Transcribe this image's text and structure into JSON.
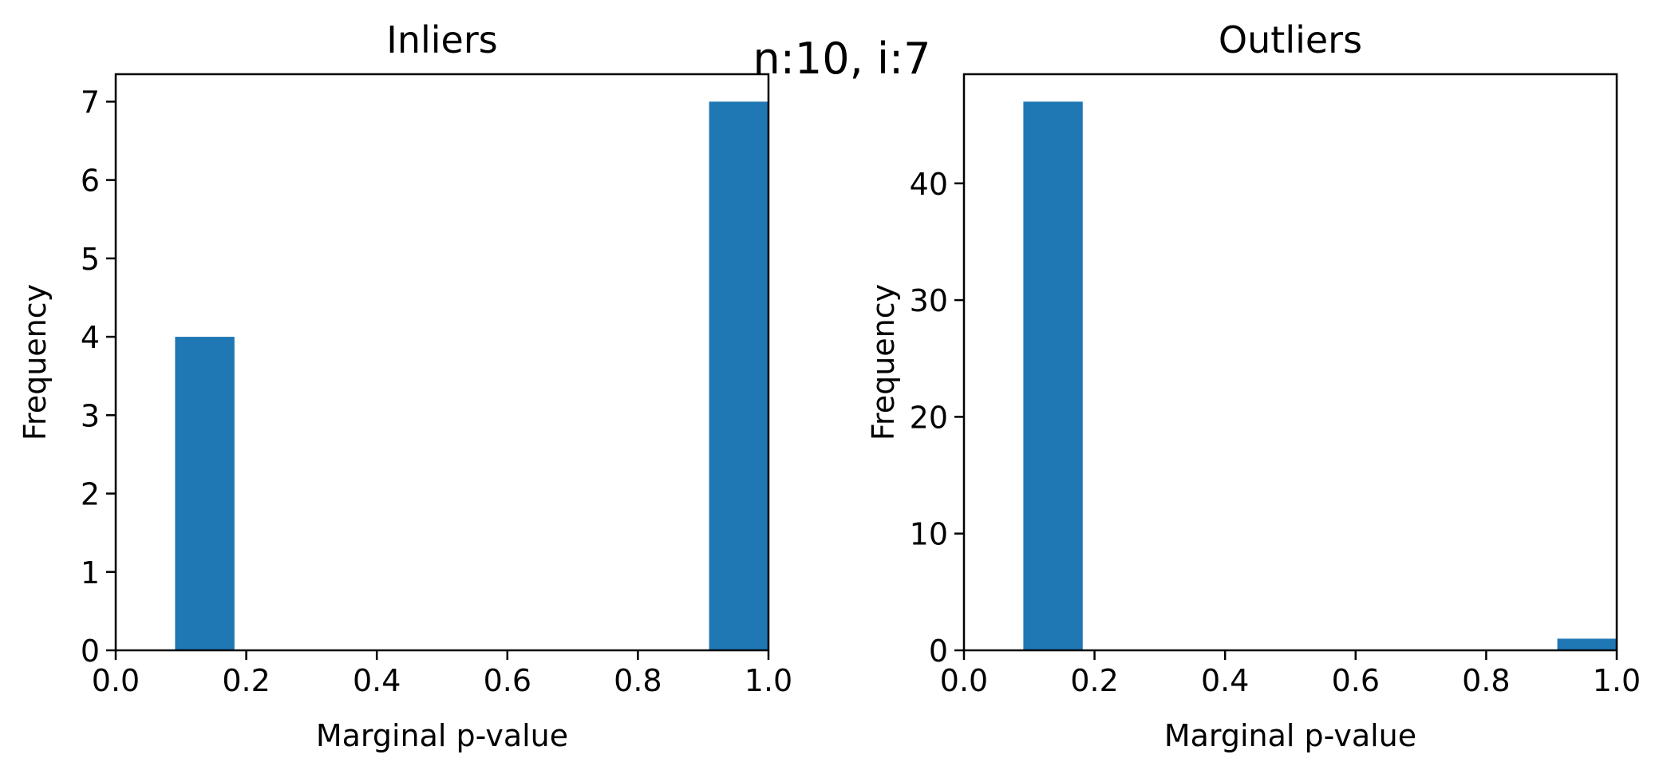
{
  "figure": {
    "suptitle": "n:10, i:7"
  },
  "colors": {
    "bar": "#1f77b4",
    "axis": "#000000",
    "background": "#ffffff"
  },
  "chart_data": [
    {
      "type": "bar",
      "title": "Inliers",
      "xlabel": "Marginal p-value",
      "ylabel": "Frequency",
      "xlim": [
        0.0,
        1.0
      ],
      "ylim": [
        0,
        7.35
      ],
      "xticks": [
        "0.0",
        "0.2",
        "0.4",
        "0.6",
        "0.8",
        "1.0"
      ],
      "yticks": [
        "0",
        "1",
        "2",
        "3",
        "4",
        "5",
        "6",
        "7"
      ],
      "bins": [
        {
          "x0": 0.091,
          "x1": 0.182,
          "value": 4
        },
        {
          "x0": 0.909,
          "x1": 1.0,
          "value": 7
        }
      ],
      "grid": false
    },
    {
      "type": "bar",
      "title": "Outliers",
      "xlabel": "Marginal p-value",
      "ylabel": "Frequency",
      "xlim": [
        0.0,
        1.0
      ],
      "ylim": [
        0,
        49.35
      ],
      "xticks": [
        "0.0",
        "0.2",
        "0.4",
        "0.6",
        "0.8",
        "1.0"
      ],
      "yticks": [
        "0",
        "10",
        "20",
        "30",
        "40"
      ],
      "bins": [
        {
          "x0": 0.091,
          "x1": 0.182,
          "value": 47
        },
        {
          "x0": 0.909,
          "x1": 1.0,
          "value": 1
        }
      ],
      "grid": false
    }
  ]
}
